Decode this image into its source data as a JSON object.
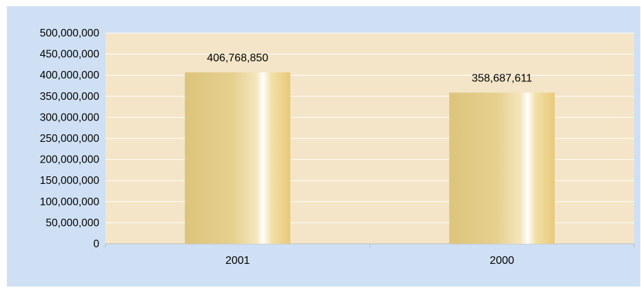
{
  "colors": {
    "background": "#cfe0f4",
    "plot_area": "#f4e5c8",
    "gridline": "#ffffff",
    "axis": "#bdbdbd",
    "bar_dark": "#e2cb86",
    "bar_light": "#ffffff",
    "text": "#000000"
  },
  "chart_data": {
    "type": "bar",
    "categories": [
      "2001",
      "2000"
    ],
    "values": [
      406768850,
      358687611
    ],
    "value_labels": [
      "406,768,850",
      "358,687,611"
    ],
    "ylim": [
      0,
      500000000
    ],
    "yticks": [
      0,
      50000000,
      100000000,
      150000000,
      200000000,
      250000000,
      300000000,
      350000000,
      400000000,
      450000000,
      500000000
    ],
    "ytick_labels": [
      "0",
      "50,000,000",
      "100,000,000",
      "150,000,000",
      "200,000,000",
      "250,000,000",
      "300,000,000",
      "350,000,000",
      "400,000,000",
      "450,000,000",
      "500,000,000"
    ],
    "title": "",
    "xlabel": "",
    "ylabel": "",
    "grid": true,
    "legend": "none"
  }
}
